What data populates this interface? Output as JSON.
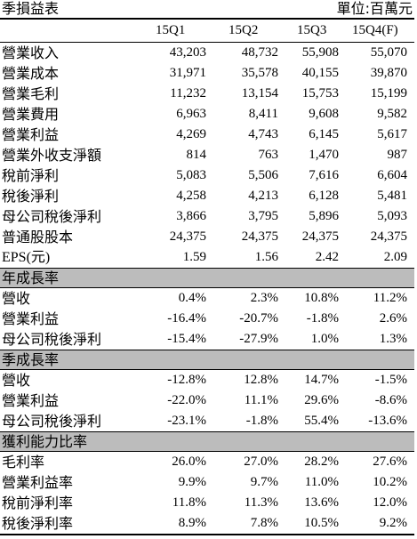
{
  "title": "季損益表",
  "unit": "單位:百萬元",
  "headers": [
    "15Q1",
    "15Q2",
    "15Q3",
    "15Q4(F)"
  ],
  "income_rows": [
    {
      "label": "營業收入",
      "values": [
        "43,203",
        "48,732",
        "55,908",
        "55,070"
      ]
    },
    {
      "label": "營業成本",
      "values": [
        "31,971",
        "35,578",
        "40,155",
        "39,870"
      ]
    },
    {
      "label": "營業毛利",
      "values": [
        "11,232",
        "13,154",
        "15,753",
        "15,199"
      ]
    },
    {
      "label": "營業費用",
      "values": [
        "6,963",
        "8,411",
        "9,608",
        "9,582"
      ]
    },
    {
      "label": "營業利益",
      "values": [
        "4,269",
        "4,743",
        "6,145",
        "5,617"
      ]
    },
    {
      "label": "營業外收支淨額",
      "values": [
        "814",
        "763",
        "1,470",
        "987"
      ]
    },
    {
      "label": "稅前淨利",
      "values": [
        "5,083",
        "5,506",
        "7,616",
        "6,604"
      ]
    },
    {
      "label": "稅後淨利",
      "values": [
        "4,258",
        "4,213",
        "6,128",
        "5,481"
      ]
    },
    {
      "label": "母公司稅後淨利",
      "values": [
        "3,866",
        "3,795",
        "5,896",
        "5,093"
      ]
    },
    {
      "label": "普通股股本",
      "values": [
        "24,375",
        "24,375",
        "24,375",
        "24,375"
      ]
    },
    {
      "label": "EPS(元)",
      "values": [
        "1.59",
        "1.56",
        "2.42",
        "2.09"
      ]
    }
  ],
  "sections": [
    {
      "title": "年成長率",
      "rows": [
        {
          "label": "營收",
          "values": [
            "0.4%",
            "2.3%",
            "10.8%",
            "11.2%"
          ]
        },
        {
          "label": "營業利益",
          "values": [
            "-16.4%",
            "-20.7%",
            "-1.8%",
            "2.6%"
          ]
        },
        {
          "label": "母公司稅後淨利",
          "values": [
            "-15.4%",
            "-27.9%",
            "1.0%",
            "1.3%"
          ]
        }
      ]
    },
    {
      "title": "季成長率",
      "rows": [
        {
          "label": "營收",
          "values": [
            "-12.8%",
            "12.8%",
            "14.7%",
            "-1.5%"
          ]
        },
        {
          "label": "營業利益",
          "values": [
            "-22.0%",
            "11.1%",
            "29.6%",
            "-8.6%"
          ]
        },
        {
          "label": "母公司稅後淨利",
          "values": [
            "-23.1%",
            "-1.8%",
            "55.4%",
            "-13.6%"
          ]
        }
      ]
    },
    {
      "title": "獲利能力比率",
      "rows": [
        {
          "label": "毛利率",
          "values": [
            "26.0%",
            "27.0%",
            "28.2%",
            "27.6%"
          ]
        },
        {
          "label": "營業利益率",
          "values": [
            "9.9%",
            "9.7%",
            "11.0%",
            "10.2%"
          ]
        },
        {
          "label": "稅前淨利率",
          "values": [
            "11.8%",
            "11.3%",
            "13.6%",
            "12.0%"
          ]
        },
        {
          "label": "稅後淨利率",
          "values": [
            "8.9%",
            "7.8%",
            "10.5%",
            "9.2%"
          ]
        }
      ]
    }
  ]
}
